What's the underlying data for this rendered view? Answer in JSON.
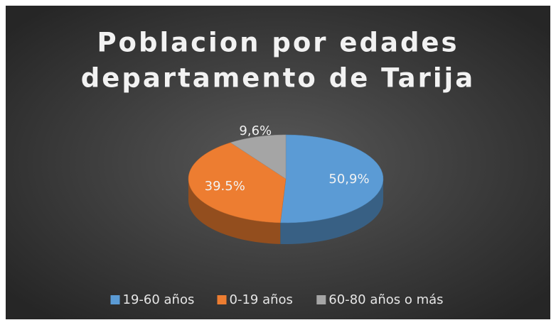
{
  "chart_data": {
    "type": "pie3d",
    "title": [
      "Poblacion por edades",
      "departamento de Tarija"
    ],
    "categories": [
      "19-60 años",
      "0-19 años",
      "60-80 años o más"
    ],
    "values": [
      50.9,
      39.5,
      9.6
    ],
    "value_labels": [
      "50,9%",
      "39.5%",
      "9,6%"
    ],
    "colors": [
      "#5b9bd5",
      "#ed7d31",
      "#a5a5a5"
    ],
    "legend": "bottom"
  }
}
